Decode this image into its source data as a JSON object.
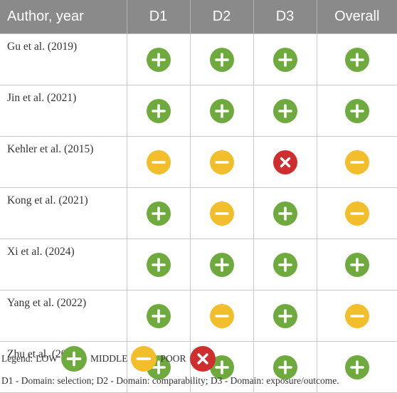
{
  "table": {
    "headers": [
      "Author, year",
      "D1",
      "D2",
      "D3",
      "Overall"
    ],
    "rows": [
      {
        "study": "Gu et al. (2019)",
        "ratings": [
          "low",
          "low",
          "low",
          "low"
        ]
      },
      {
        "study": "Jin et al. (2021)",
        "ratings": [
          "low",
          "low",
          "low",
          "low"
        ]
      },
      {
        "study": "Kehler et al. (2015)",
        "ratings": [
          "middle",
          "middle",
          "poor",
          "middle"
        ]
      },
      {
        "study": "Kong et al. (2021)",
        "ratings": [
          "low",
          "middle",
          "low",
          "middle"
        ]
      },
      {
        "study": "Xi et al. (2024)",
        "ratings": [
          "low",
          "low",
          "low",
          "low"
        ]
      },
      {
        "study": "Yang et al. (2022)",
        "ratings": [
          "low",
          "middle",
          "low",
          "middle"
        ]
      },
      {
        "study": "Zhu et al. (2013)",
        "ratings": [
          "low",
          "low",
          "low",
          "low"
        ]
      }
    ]
  },
  "legend": {
    "prefix": "Legend:",
    "items": [
      {
        "key": "low",
        "label": "LOW"
      },
      {
        "key": "middle",
        "label": "MIDDLE"
      },
      {
        "key": "poor",
        "label": "POOR"
      }
    ]
  },
  "rating_styles": {
    "low": {
      "color": "#6faa3f",
      "icon": "plus-icon"
    },
    "middle": {
      "color": "#f2be2c",
      "icon": "minus-icon"
    },
    "poor": {
      "color": "#cf2e2e",
      "icon": "cross-icon"
    }
  },
  "note": "D1 - Domain: selection; D2 - Domain: comparability; D3 - Domain: exposure/outcome."
}
